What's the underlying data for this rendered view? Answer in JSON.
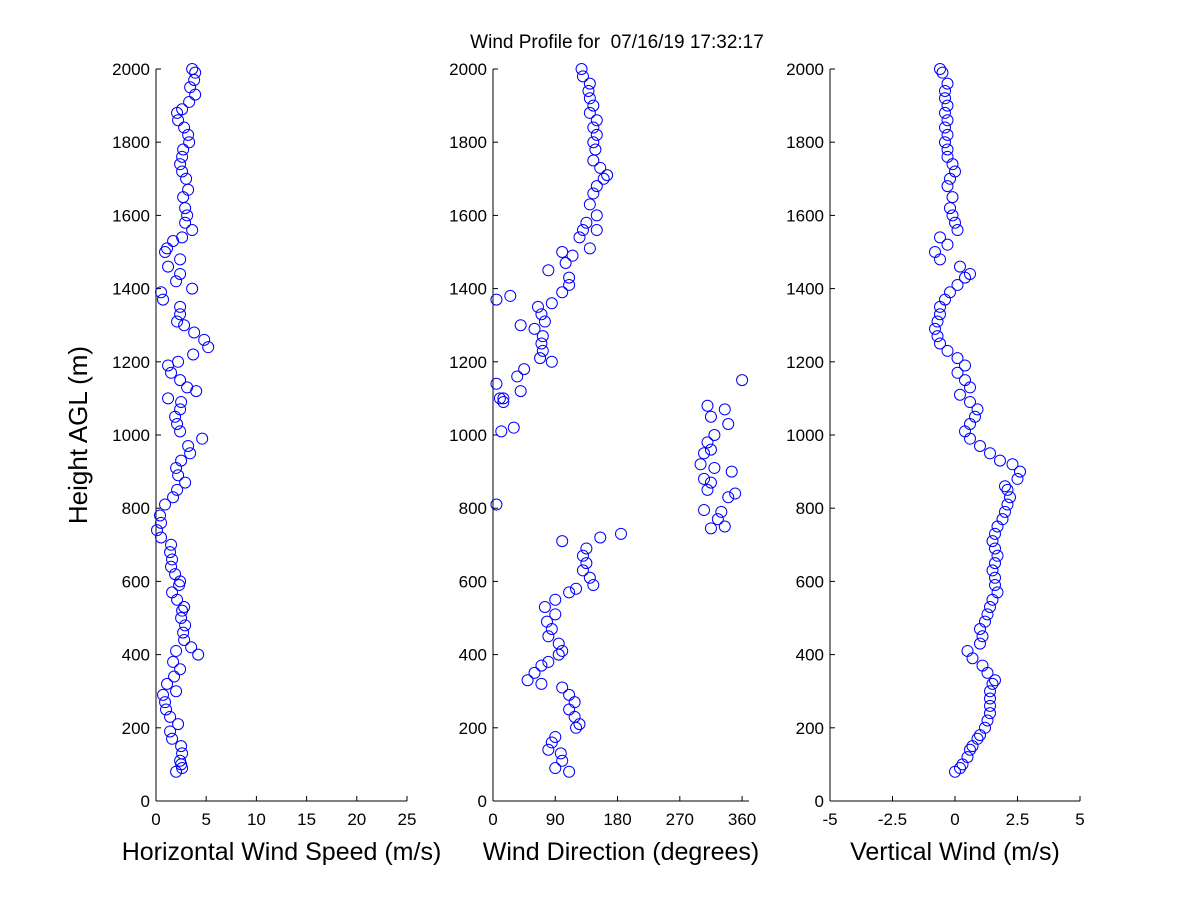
{
  "title": "Wind Profile for  07/16/19 17:32:17",
  "ylabel": "Height AGL (m)",
  "chart_data": [
    {
      "type": "scatter",
      "xlabel": "Horizontal Wind Speed (m/s)",
      "ylabel": "Height AGL (m)",
      "xlim": [
        0,
        25
      ],
      "ylim": [
        0,
        2000
      ],
      "xticks": [
        "0",
        "5",
        "10",
        "15",
        "20",
        "25"
      ],
      "xtick_values": [
        0,
        5,
        10,
        15,
        20,
        25
      ],
      "yticks": [
        "0",
        "200",
        "400",
        "600",
        "800",
        "1000",
        "1200",
        "1400",
        "1600",
        "1800",
        "2000"
      ],
      "marker": "open-circle",
      "color": "#0000ff",
      "points": [
        [
          2.0,
          80
        ],
        [
          2.6,
          90
        ],
        [
          2.5,
          100
        ],
        [
          2.4,
          110
        ],
        [
          2.6,
          130
        ],
        [
          2.5,
          150
        ],
        [
          1.6,
          170
        ],
        [
          1.4,
          190
        ],
        [
          2.2,
          210
        ],
        [
          1.4,
          230
        ],
        [
          1.0,
          250
        ],
        [
          0.9,
          270
        ],
        [
          0.7,
          290
        ],
        [
          2.0,
          300
        ],
        [
          1.1,
          320
        ],
        [
          1.8,
          340
        ],
        [
          2.4,
          360
        ],
        [
          1.7,
          380
        ],
        [
          4.2,
          400
        ],
        [
          2.0,
          410
        ],
        [
          3.5,
          420
        ],
        [
          2.8,
          440
        ],
        [
          2.7,
          460
        ],
        [
          2.9,
          480
        ],
        [
          2.5,
          500
        ],
        [
          2.6,
          520
        ],
        [
          2.8,
          530
        ],
        [
          2.1,
          550
        ],
        [
          1.6,
          570
        ],
        [
          2.3,
          590
        ],
        [
          2.4,
          600
        ],
        [
          1.9,
          620
        ],
        [
          1.5,
          640
        ],
        [
          1.6,
          660
        ],
        [
          1.4,
          680
        ],
        [
          1.5,
          700
        ],
        [
          0.5,
          720
        ],
        [
          0.1,
          740
        ],
        [
          0.5,
          760
        ],
        [
          0.4,
          780
        ],
        [
          0.9,
          810
        ],
        [
          1.7,
          830
        ],
        [
          2.1,
          850
        ],
        [
          2.9,
          870
        ],
        [
          2.2,
          890
        ],
        [
          2.0,
          910
        ],
        [
          2.5,
          930
        ],
        [
          3.4,
          950
        ],
        [
          3.2,
          970
        ],
        [
          4.6,
          990
        ],
        [
          2.4,
          1010
        ],
        [
          2.1,
          1030
        ],
        [
          1.9,
          1050
        ],
        [
          2.4,
          1070
        ],
        [
          2.5,
          1090
        ],
        [
          1.2,
          1100
        ],
        [
          4.0,
          1120
        ],
        [
          3.1,
          1130
        ],
        [
          2.4,
          1150
        ],
        [
          1.5,
          1170
        ],
        [
          1.2,
          1190
        ],
        [
          2.2,
          1200
        ],
        [
          3.7,
          1220
        ],
        [
          5.2,
          1240
        ],
        [
          4.8,
          1260
        ],
        [
          3.8,
          1280
        ],
        [
          2.8,
          1300
        ],
        [
          2.1,
          1310
        ],
        [
          2.4,
          1330
        ],
        [
          2.4,
          1350
        ],
        [
          0.7,
          1370
        ],
        [
          0.5,
          1390
        ],
        [
          3.6,
          1400
        ],
        [
          2.0,
          1420
        ],
        [
          2.4,
          1440
        ],
        [
          1.2,
          1460
        ],
        [
          2.4,
          1480
        ],
        [
          0.9,
          1500
        ],
        [
          1.1,
          1510
        ],
        [
          1.7,
          1530
        ],
        [
          2.6,
          1540
        ],
        [
          3.6,
          1560
        ],
        [
          2.9,
          1580
        ],
        [
          3.1,
          1600
        ],
        [
          2.9,
          1620
        ],
        [
          2.7,
          1650
        ],
        [
          3.2,
          1670
        ],
        [
          3.0,
          1700
        ],
        [
          2.6,
          1720
        ],
        [
          2.4,
          1740
        ],
        [
          2.6,
          1760
        ],
        [
          2.7,
          1780
        ],
        [
          3.3,
          1800
        ],
        [
          3.2,
          1820
        ],
        [
          2.8,
          1840
        ],
        [
          2.2,
          1860
        ],
        [
          2.1,
          1880
        ],
        [
          2.6,
          1890
        ],
        [
          3.3,
          1910
        ],
        [
          3.9,
          1930
        ],
        [
          3.4,
          1950
        ],
        [
          3.8,
          1970
        ],
        [
          3.9,
          1990
        ],
        [
          3.6,
          2000
        ]
      ]
    },
    {
      "type": "scatter",
      "xlabel": "Wind Direction (degrees)",
      "xlim": [
        0,
        370
      ],
      "ylim": [
        0,
        2000
      ],
      "xticks": [
        "0",
        "90",
        "180",
        "270",
        "360"
      ],
      "xtick_values": [
        0,
        90,
        180,
        270,
        360
      ],
      "yticks": [
        "0",
        "200",
        "400",
        "600",
        "800",
        "1000",
        "1200",
        "1400",
        "1600",
        "1800",
        "2000"
      ],
      "marker": "open-circle",
      "color": "#0000ff",
      "points": [
        [
          110,
          80
        ],
        [
          90,
          90
        ],
        [
          100,
          110
        ],
        [
          98,
          130
        ],
        [
          80,
          140
        ],
        [
          85,
          160
        ],
        [
          90,
          175
        ],
        [
          120,
          200
        ],
        [
          125,
          210
        ],
        [
          118,
          230
        ],
        [
          110,
          250
        ],
        [
          118,
          270
        ],
        [
          110,
          290
        ],
        [
          100,
          310
        ],
        [
          70,
          320
        ],
        [
          50,
          330
        ],
        [
          60,
          350
        ],
        [
          70,
          370
        ],
        [
          80,
          380
        ],
        [
          95,
          400
        ],
        [
          100,
          410
        ],
        [
          95,
          430
        ],
        [
          80,
          450
        ],
        [
          85,
          470
        ],
        [
          78,
          490
        ],
        [
          90,
          510
        ],
        [
          75,
          530
        ],
        [
          90,
          550
        ],
        [
          110,
          570
        ],
        [
          120,
          580
        ],
        [
          145,
          590
        ],
        [
          140,
          610
        ],
        [
          130,
          630
        ],
        [
          135,
          650
        ],
        [
          130,
          670
        ],
        [
          135,
          690
        ],
        [
          100,
          710
        ],
        [
          155,
          720
        ],
        [
          185,
          730
        ],
        [
          335,
          750
        ],
        [
          315,
          745
        ],
        [
          325,
          770
        ],
        [
          330,
          790
        ],
        [
          305,
          795
        ],
        [
          340,
          830
        ],
        [
          350,
          840
        ],
        [
          310,
          850
        ],
        [
          315,
          870
        ],
        [
          305,
          880
        ],
        [
          345,
          900
        ],
        [
          320,
          910
        ],
        [
          300,
          920
        ],
        [
          305,
          950
        ],
        [
          315,
          960
        ],
        [
          310,
          980
        ],
        [
          320,
          1000
        ],
        [
          340,
          1030
        ],
        [
          315,
          1050
        ],
        [
          335,
          1070
        ],
        [
          310,
          1080
        ],
        [
          360,
          1150
        ],
        [
          5,
          810
        ],
        [
          12,
          1010
        ],
        [
          30,
          1020
        ],
        [
          10,
          1100
        ],
        [
          15,
          1100
        ],
        [
          5,
          1140
        ],
        [
          40,
          1120
        ],
        [
          35,
          1160
        ],
        [
          45,
          1180
        ],
        [
          15,
          1090
        ],
        [
          85,
          1200
        ],
        [
          68,
          1210
        ],
        [
          72,
          1230
        ],
        [
          70,
          1250
        ],
        [
          72,
          1270
        ],
        [
          60,
          1290
        ],
        [
          75,
          1310
        ],
        [
          70,
          1330
        ],
        [
          65,
          1350
        ],
        [
          85,
          1360
        ],
        [
          5,
          1370
        ],
        [
          25,
          1380
        ],
        [
          40,
          1300
        ],
        [
          100,
          1390
        ],
        [
          110,
          1410
        ],
        [
          110,
          1430
        ],
        [
          80,
          1450
        ],
        [
          105,
          1470
        ],
        [
          115,
          1490
        ],
        [
          100,
          1500
        ],
        [
          140,
          1510
        ],
        [
          125,
          1540
        ],
        [
          130,
          1560
        ],
        [
          135,
          1580
        ],
        [
          150,
          1560
        ],
        [
          150,
          1600
        ],
        [
          140,
          1630
        ],
        [
          145,
          1660
        ],
        [
          150,
          1680
        ],
        [
          160,
          1700
        ],
        [
          165,
          1710
        ],
        [
          155,
          1730
        ],
        [
          145,
          1750
        ],
        [
          148,
          1780
        ],
        [
          145,
          1800
        ],
        [
          150,
          1820
        ],
        [
          145,
          1840
        ],
        [
          150,
          1860
        ],
        [
          140,
          1880
        ],
        [
          145,
          1900
        ],
        [
          140,
          1920
        ],
        [
          138,
          1940
        ],
        [
          140,
          1960
        ],
        [
          130,
          1980
        ],
        [
          128,
          2000
        ]
      ]
    },
    {
      "type": "scatter",
      "xlabel": "Vertical Wind (m/s)",
      "xlim": [
        -5,
        5
      ],
      "ylim": [
        0,
        2000
      ],
      "xticks": [
        "-5",
        "-2.5",
        "0",
        "2.5",
        "5"
      ],
      "xtick_values": [
        -5,
        -2.5,
        0,
        2.5,
        5
      ],
      "yticks": [
        "0",
        "200",
        "400",
        "600",
        "800",
        "1000",
        "1200",
        "1400",
        "1600",
        "1800",
        "2000"
      ],
      "marker": "open-circle",
      "color": "#0000ff",
      "points": [
        [
          0.0,
          80
        ],
        [
          0.2,
          90
        ],
        [
          0.3,
          100
        ],
        [
          0.5,
          120
        ],
        [
          0.6,
          140
        ],
        [
          0.7,
          150
        ],
        [
          0.9,
          170
        ],
        [
          1.0,
          180
        ],
        [
          1.2,
          200
        ],
        [
          1.3,
          220
        ],
        [
          1.4,
          240
        ],
        [
          1.4,
          260
        ],
        [
          1.4,
          280
        ],
        [
          1.4,
          300
        ],
        [
          1.5,
          320
        ],
        [
          1.6,
          330
        ],
        [
          1.3,
          350
        ],
        [
          1.1,
          370
        ],
        [
          0.7,
          390
        ],
        [
          0.5,
          410
        ],
        [
          1.0,
          430
        ],
        [
          1.1,
          450
        ],
        [
          1.0,
          470
        ],
        [
          1.2,
          490
        ],
        [
          1.3,
          510
        ],
        [
          1.4,
          530
        ],
        [
          1.5,
          550
        ],
        [
          1.7,
          570
        ],
        [
          1.6,
          590
        ],
        [
          1.6,
          610
        ],
        [
          1.5,
          630
        ],
        [
          1.6,
          650
        ],
        [
          1.7,
          670
        ],
        [
          1.6,
          690
        ],
        [
          1.5,
          710
        ],
        [
          1.6,
          730
        ],
        [
          1.7,
          750
        ],
        [
          1.9,
          770
        ],
        [
          2.0,
          790
        ],
        [
          2.1,
          810
        ],
        [
          2.2,
          830
        ],
        [
          2.1,
          850
        ],
        [
          2.0,
          860
        ],
        [
          2.5,
          880
        ],
        [
          2.6,
          900
        ],
        [
          2.3,
          920
        ],
        [
          1.8,
          930
        ],
        [
          1.4,
          950
        ],
        [
          1.0,
          970
        ],
        [
          0.6,
          990
        ],
        [
          0.4,
          1010
        ],
        [
          0.6,
          1030
        ],
        [
          0.8,
          1050
        ],
        [
          0.9,
          1070
        ],
        [
          0.6,
          1090
        ],
        [
          0.2,
          1110
        ],
        [
          0.6,
          1130
        ],
        [
          0.4,
          1150
        ],
        [
          0.1,
          1170
        ],
        [
          0.4,
          1190
        ],
        [
          0.1,
          1210
        ],
        [
          -0.3,
          1230
        ],
        [
          -0.6,
          1250
        ],
        [
          -0.7,
          1270
        ],
        [
          -0.8,
          1290
        ],
        [
          -0.7,
          1310
        ],
        [
          -0.6,
          1330
        ],
        [
          -0.6,
          1350
        ],
        [
          -0.4,
          1370
        ],
        [
          -0.2,
          1390
        ],
        [
          0.1,
          1410
        ],
        [
          0.4,
          1430
        ],
        [
          0.6,
          1440
        ],
        [
          0.2,
          1460
        ],
        [
          -0.6,
          1480
        ],
        [
          -0.8,
          1500
        ],
        [
          -0.3,
          1520
        ],
        [
          -0.6,
          1540
        ],
        [
          0.1,
          1560
        ],
        [
          0.0,
          1580
        ],
        [
          -0.1,
          1600
        ],
        [
          -0.2,
          1620
        ],
        [
          -0.1,
          1650
        ],
        [
          -0.3,
          1680
        ],
        [
          -0.2,
          1700
        ],
        [
          0.0,
          1720
        ],
        [
          -0.1,
          1740
        ],
        [
          -0.3,
          1760
        ],
        [
          -0.3,
          1780
        ],
        [
          -0.4,
          1800
        ],
        [
          -0.3,
          1820
        ],
        [
          -0.4,
          1840
        ],
        [
          -0.3,
          1860
        ],
        [
          -0.4,
          1880
        ],
        [
          -0.3,
          1900
        ],
        [
          -0.4,
          1920
        ],
        [
          -0.4,
          1940
        ],
        [
          -0.3,
          1960
        ],
        [
          -0.5,
          1990
        ],
        [
          -0.6,
          2000
        ]
      ]
    }
  ]
}
